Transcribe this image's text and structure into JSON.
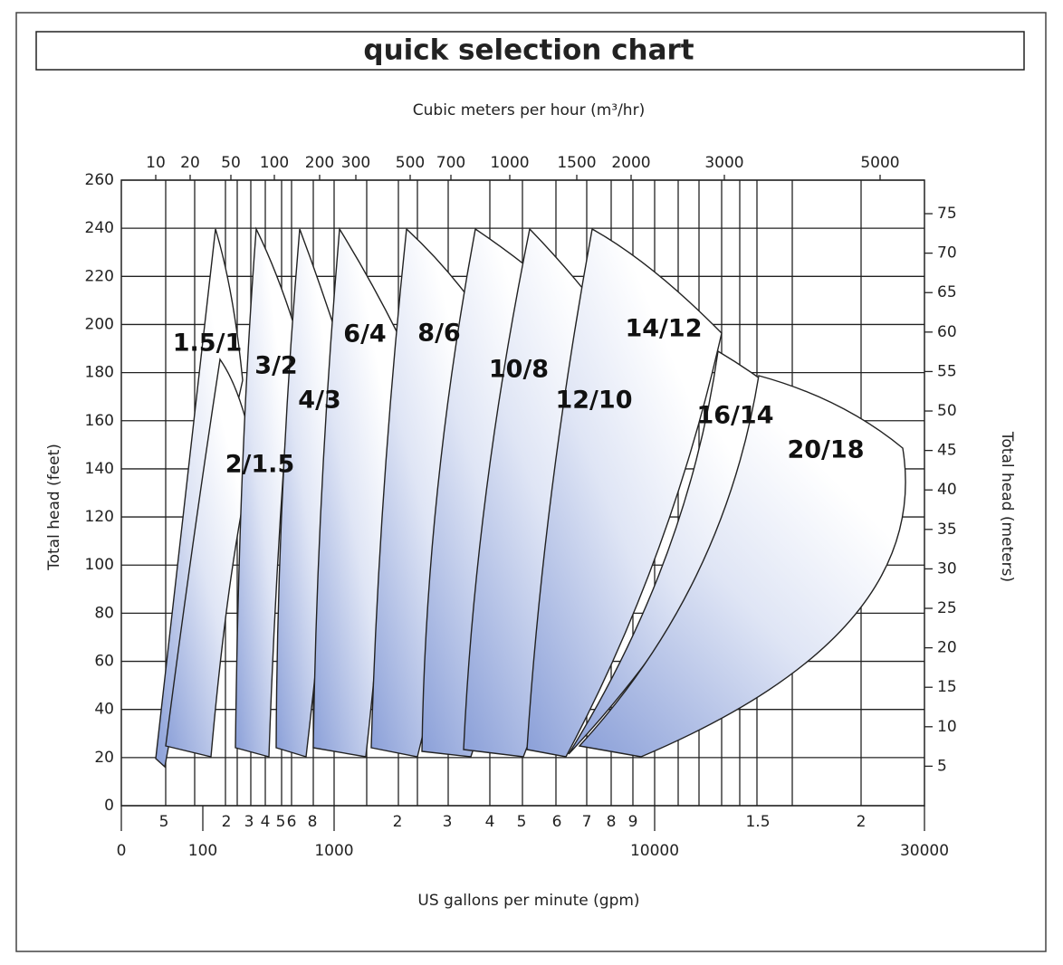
{
  "title": "quick selection chart",
  "top_axis_label": "Cubic meters per hour (m³/hr)",
  "top_ticks": [
    10,
    20,
    50,
    100,
    200,
    300,
    500,
    700,
    1000,
    1500,
    2000,
    3000,
    5000
  ],
  "left_axis_label": "Total head (feet)",
  "left_ticks": [
    0,
    20,
    40,
    60,
    80,
    100,
    120,
    140,
    160,
    180,
    200,
    220,
    240,
    260
  ],
  "right_axis_label": "Total head (meters)",
  "right_ticks": [
    5,
    10,
    15,
    20,
    25,
    30,
    35,
    40,
    45,
    50,
    55,
    60,
    65,
    70,
    75
  ],
  "bottom_minor_ticks": [
    5,
    2,
    3,
    4,
    5,
    6,
    8,
    2,
    3,
    4,
    5,
    6,
    7,
    8,
    9,
    1.5,
    2
  ],
  "bottom_ticks": [
    0,
    100,
    1000,
    10000,
    30000
  ],
  "bottom_axis_label": "US gallons per minute (gpm)",
  "regions": [
    "1.5/1",
    "2/1.5",
    "3/2",
    "4/3",
    "6/4",
    "8/6",
    "10/8",
    "12/10",
    "14/12",
    "16/14",
    "20/18"
  ]
}
